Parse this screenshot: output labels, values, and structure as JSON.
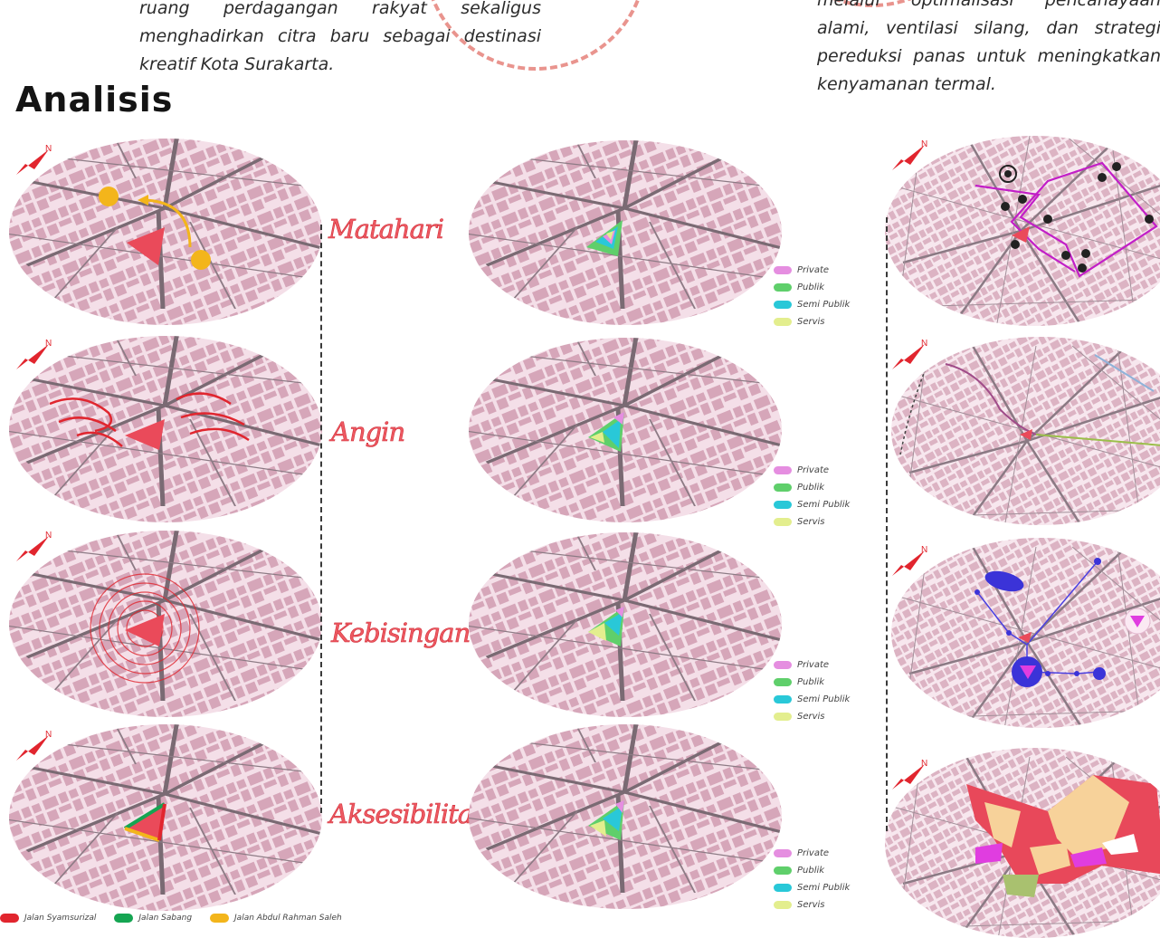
{
  "intro_left": {
    "lines": [
      "ruang perdagangan rakyat sekaligus",
      "menghadirkan citra baru sebagai destinasi",
      "kreatif Kota Surakarta."
    ]
  },
  "intro_right": {
    "lines": [
      "melalui optimalisasi pencahayaan",
      "alami, ventilasi silang, dan strategi",
      "pereduksi panas untuk meningkatkan",
      "kenyamanan termal."
    ]
  },
  "section_title": "Analisis",
  "analysis_labels": [
    "Matahari",
    "Angin",
    "Kebisingan",
    "Aksesibilitas"
  ],
  "zoning_legend": [
    {
      "label": "Private",
      "color": "#e58ee0"
    },
    {
      "label": "Publik",
      "color": "#5fcf6b"
    },
    {
      "label": "Semi Publik",
      "color": "#29c8d8"
    },
    {
      "label": "Servis",
      "color": "#e3ee8e"
    }
  ],
  "road_legend": [
    {
      "label": "Jalan Syamsurizal",
      "color": "#e1252e"
    },
    {
      "label": "Jalan Sabang",
      "color": "#15a552"
    },
    {
      "label": "Jalan Abdul Rahman Saleh",
      "color": "#f3b51b"
    }
  ],
  "north_marker": "N",
  "colors": {
    "map_base": "#f4dfe8",
    "building": "#d6a6b9",
    "road": "#7a6a73",
    "site": "#ea4a5a",
    "accent_label": "#ee5a62"
  }
}
